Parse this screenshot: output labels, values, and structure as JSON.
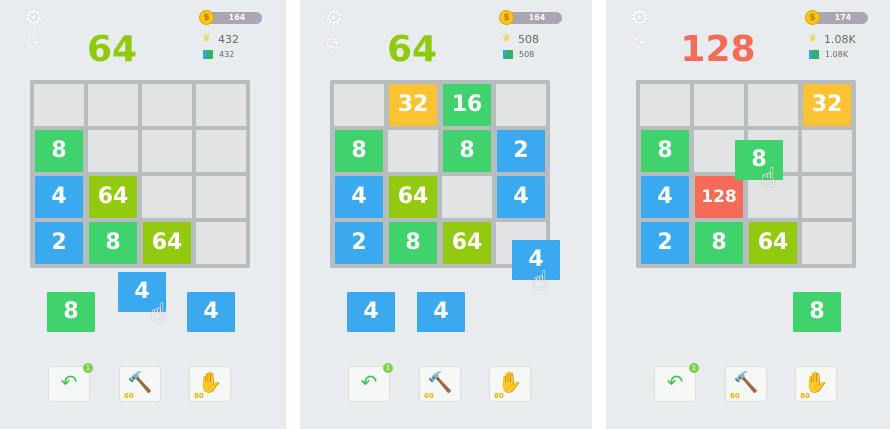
{
  "colors": {
    "green": "#3fd26d",
    "blue": "#3aa9f0",
    "lime": "#93c90f",
    "yellow": "#fbc234",
    "red": "#f66b57",
    "bg": "#e9ecee"
  },
  "icons": [
    "gear-icon",
    "restart-icon",
    "coin-icon",
    "crown-icon",
    "blocks-icon",
    "undo-icon",
    "hammer-icon",
    "hand-icon",
    "pointer-hand-icon"
  ],
  "panels": [
    {
      "score": "64",
      "score_color": "#8ecb0d",
      "coins": "164",
      "best": "432",
      "blocks": "432",
      "grid": [
        [
          "",
          "",
          "",
          ""
        ],
        [
          "8",
          "",
          "",
          ""
        ],
        [
          "4",
          "64",
          "",
          ""
        ],
        [
          "2",
          "8",
          "64",
          ""
        ]
      ],
      "queue": [
        {
          "value": "8",
          "color": "green",
          "slot": 0
        },
        {
          "value": "4",
          "color": "blue",
          "slot": 2
        }
      ],
      "dragged": {
        "value": "4",
        "color": "blue"
      },
      "tools": {
        "undo_badge": "1",
        "hammer_price": "60",
        "hand_price": "80"
      }
    },
    {
      "score": "64",
      "score_color": "#8ecb0d",
      "coins": "164",
      "best": "508",
      "blocks": "508",
      "grid": [
        [
          "",
          "32",
          "16",
          ""
        ],
        [
          "8",
          "",
          "8",
          "2"
        ],
        [
          "4",
          "64",
          "",
          "4"
        ],
        [
          "2",
          "8",
          "64",
          ""
        ]
      ],
      "queue": [
        {
          "value": "4",
          "color": "blue",
          "slot": 0
        },
        {
          "value": "4",
          "color": "blue",
          "slot": 1
        }
      ],
      "dragged": {
        "value": "4",
        "color": "blue"
      },
      "tools": {
        "undo_badge": "1",
        "hammer_price": "60",
        "hand_price": "80"
      }
    },
    {
      "score": "128",
      "score_color": "#f66b57",
      "coins": "174",
      "best": "1.08K",
      "blocks": "1.08K",
      "grid": [
        [
          "",
          "",
          "",
          "32"
        ],
        [
          "8",
          "",
          "",
          ""
        ],
        [
          "4",
          "128",
          "",
          ""
        ],
        [
          "2",
          "8",
          "64",
          ""
        ]
      ],
      "queue": [
        {
          "value": "8",
          "color": "green",
          "slot": 2
        }
      ],
      "dragged": {
        "value": "8",
        "color": "green"
      },
      "tools": {
        "undo_badge": "1",
        "hammer_price": "60",
        "hand_price": "80"
      }
    }
  ]
}
